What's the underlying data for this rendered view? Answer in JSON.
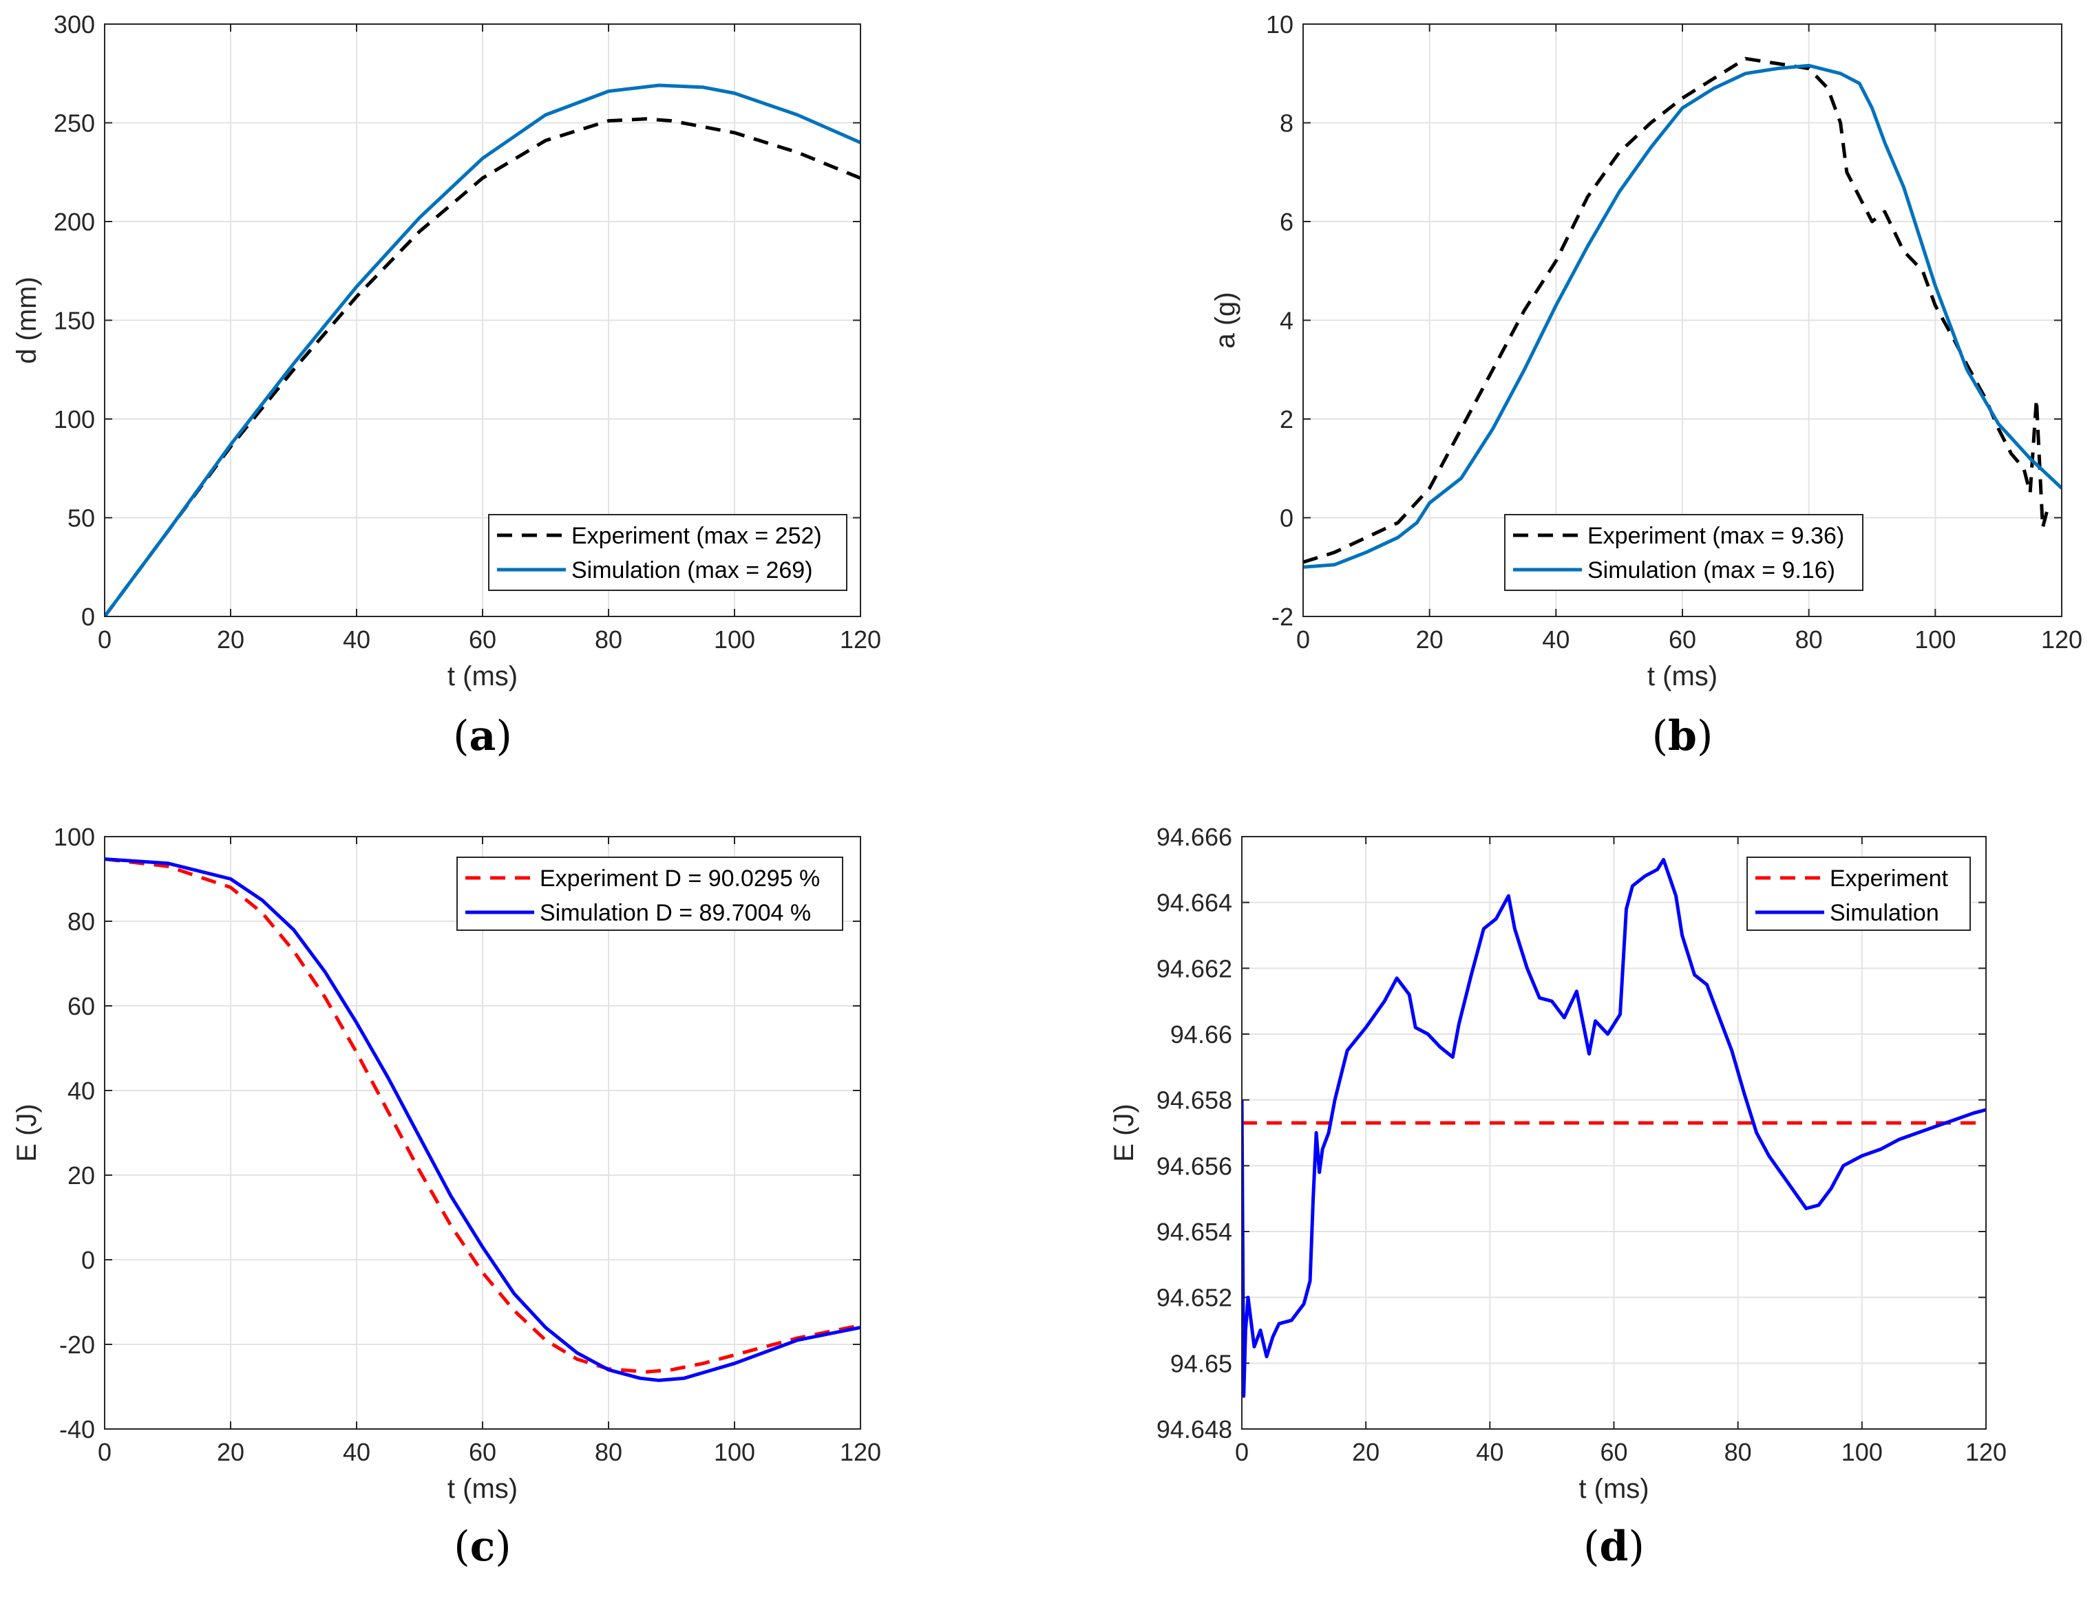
{
  "chart_data": [
    {
      "id": "a",
      "type": "line",
      "caption": "a",
      "xlabel": "t (ms)",
      "ylabel": "d (mm)",
      "xlim": [
        0,
        120
      ],
      "ylim": [
        0,
        300
      ],
      "xticks": [
        0,
        20,
        40,
        60,
        80,
        100,
        120
      ],
      "yticks": [
        0,
        50,
        100,
        150,
        200,
        250,
        300
      ],
      "grid": true,
      "legend_position": "bottom-right",
      "series": [
        {
          "name": "Experiment (max = 252)",
          "style": "dashed",
          "color": "#000000",
          "x": [
            0,
            10,
            20,
            30,
            40,
            50,
            60,
            70,
            80,
            86,
            90,
            100,
            110,
            120
          ],
          "y": [
            0,
            43,
            86,
            125,
            162,
            195,
            222,
            241,
            251,
            252,
            251,
            245,
            235,
            222
          ]
        },
        {
          "name": "Simulation (max = 269)",
          "style": "solid",
          "color": "#0072BD",
          "x": [
            0,
            10,
            20,
            30,
            40,
            50,
            60,
            70,
            80,
            88,
            95,
            100,
            110,
            120
          ],
          "y": [
            0,
            43,
            87,
            128,
            167,
            202,
            232,
            254,
            266,
            269,
            268,
            265,
            254,
            240
          ]
        }
      ]
    },
    {
      "id": "b",
      "type": "line",
      "caption": "b",
      "xlabel": "t (ms)",
      "ylabel": "a (g)",
      "xlim": [
        0,
        120
      ],
      "ylim": [
        -2,
        10
      ],
      "xticks": [
        0,
        20,
        40,
        60,
        80,
        100,
        120
      ],
      "yticks": [
        -2,
        0,
        2,
        4,
        6,
        8,
        10
      ],
      "grid": true,
      "legend_position": "bottom-center",
      "series": [
        {
          "name": "Experiment (max = 9.36)",
          "style": "dashed",
          "color": "#000000",
          "x": [
            0,
            5,
            10,
            15,
            20,
            25,
            30,
            35,
            40,
            45,
            50,
            55,
            60,
            65,
            70,
            75,
            80,
            83,
            85,
            86,
            88,
            90,
            92,
            95,
            98,
            100,
            103,
            105,
            108,
            110,
            112,
            114,
            115,
            116,
            117,
            118
          ],
          "y": [
            -0.9,
            -0.7,
            -0.4,
            -0.1,
            0.6,
            1.8,
            3.0,
            4.2,
            5.2,
            6.5,
            7.4,
            8.0,
            8.5,
            8.9,
            9.3,
            9.2,
            9.1,
            8.7,
            8.0,
            7.0,
            6.5,
            6.0,
            6.2,
            5.4,
            5.0,
            4.3,
            3.6,
            3.1,
            2.4,
            1.8,
            1.3,
            1.0,
            0.5,
            2.4,
            -0.2,
            0.3
          ]
        },
        {
          "name": "Simulation (max = 9.16)",
          "style": "solid",
          "color": "#0072BD",
          "x": [
            0,
            5,
            10,
            15,
            18,
            20,
            25,
            30,
            35,
            40,
            45,
            50,
            55,
            60,
            65,
            70,
            75,
            80,
            85,
            88,
            90,
            92,
            95,
            100,
            105,
            110,
            115,
            120
          ],
          "y": [
            -1.0,
            -0.95,
            -0.7,
            -0.4,
            -0.1,
            0.3,
            0.8,
            1.8,
            3.0,
            4.3,
            5.5,
            6.6,
            7.5,
            8.3,
            8.7,
            9.0,
            9.1,
            9.16,
            9.0,
            8.8,
            8.3,
            7.6,
            6.7,
            4.7,
            3.0,
            1.9,
            1.2,
            0.6
          ]
        }
      ]
    },
    {
      "id": "c",
      "type": "line",
      "caption": "c",
      "xlabel": "t (ms)",
      "ylabel": "E (J)",
      "xlim": [
        0,
        120
      ],
      "ylim": [
        -40,
        100
      ],
      "xticks": [
        0,
        20,
        40,
        60,
        80,
        100,
        120
      ],
      "yticks": [
        -40,
        -20,
        0,
        20,
        40,
        60,
        80,
        100
      ],
      "grid": true,
      "legend_position": "top-right",
      "series": [
        {
          "name": "Experiment D = 90.0295 %",
          "style": "dashed",
          "color": "#FF0000",
          "x": [
            0,
            10,
            20,
            25,
            30,
            35,
            40,
            45,
            50,
            55,
            60,
            65,
            70,
            75,
            80,
            86,
            90,
            95,
            100,
            110,
            120
          ],
          "y": [
            94.7,
            93,
            88,
            82,
            73,
            62,
            49,
            35,
            21,
            8,
            -3,
            -12,
            -19,
            -23.5,
            -25.8,
            -26.5,
            -26,
            -24.5,
            -22.5,
            -18.5,
            -15.5
          ]
        },
        {
          "name": "Simulation D = 89.7004 %",
          "style": "solid",
          "color": "#0000FF",
          "x": [
            0,
            10,
            20,
            25,
            30,
            35,
            40,
            45,
            50,
            55,
            60,
            65,
            70,
            75,
            80,
            85,
            88,
            92,
            100,
            110,
            120
          ],
          "y": [
            94.7,
            93.7,
            90,
            85,
            78,
            68,
            56,
            43,
            29,
            15,
            3,
            -8,
            -16,
            -22,
            -26,
            -28,
            -28.5,
            -28,
            -24.5,
            -19,
            -16
          ]
        }
      ]
    },
    {
      "id": "d",
      "type": "line",
      "caption": "d",
      "xlabel": "t (ms)",
      "ylabel": "E (J)",
      "xlim": [
        0,
        120
      ],
      "ylim": [
        94.648,
        94.666
      ],
      "xticks": [
        0,
        20,
        40,
        60,
        80,
        100,
        120
      ],
      "xtick_labels": [
        "0",
        "20",
        "40",
        "60",
        "80",
        "100",
        "120"
      ],
      "yticks": [
        94.648,
        94.65,
        94.652,
        94.654,
        94.656,
        94.658,
        94.66,
        94.662,
        94.664,
        94.666
      ],
      "ytick_labels": [
        "94.648",
        "94.65",
        "94.652",
        "94.654",
        "94.656",
        "94.658",
        "94.66",
        "94.662",
        "94.664",
        "94.666"
      ],
      "grid": true,
      "legend_position": "top-right",
      "series": [
        {
          "name": "Experiment",
          "style": "dashed",
          "color": "#FF0000",
          "x": [
            0,
            120
          ],
          "y": [
            94.6573,
            94.6573
          ]
        },
        {
          "name": "Simulation",
          "style": "solid",
          "color": "#0000FF",
          "x": [
            0,
            0.3,
            0.6,
            1,
            2,
            3,
            4,
            5,
            6,
            8,
            10,
            11,
            11.5,
            12,
            12.5,
            13,
            14,
            15,
            17,
            20,
            23,
            25,
            27,
            28,
            30,
            32,
            34,
            35,
            37,
            39,
            41,
            43,
            44,
            46,
            48,
            50,
            52,
            54,
            56,
            57,
            59,
            61,
            62,
            63,
            65,
            67,
            68,
            70,
            71,
            73,
            75,
            77,
            79,
            81,
            83,
            85,
            88,
            91,
            93,
            95,
            97,
            100,
            103,
            106,
            109,
            112,
            115,
            118,
            120
          ],
          "y": [
            94.658,
            94.649,
            94.651,
            94.652,
            94.6505,
            94.651,
            94.6502,
            94.6508,
            94.6512,
            94.6513,
            94.6518,
            94.6525,
            94.655,
            94.657,
            94.6558,
            94.6565,
            94.657,
            94.658,
            94.6595,
            94.6602,
            94.661,
            94.6617,
            94.6612,
            94.6602,
            94.66,
            94.6596,
            94.6593,
            94.6603,
            94.6618,
            94.6632,
            94.6635,
            94.6642,
            94.6632,
            94.662,
            94.6611,
            94.661,
            94.6605,
            94.6613,
            94.6594,
            94.6604,
            94.66,
            94.6606,
            94.6638,
            94.6645,
            94.6648,
            94.665,
            94.6653,
            94.6642,
            94.663,
            94.6618,
            94.6615,
            94.6605,
            94.6595,
            94.6582,
            94.657,
            94.6563,
            94.6555,
            94.6547,
            94.6548,
            94.6553,
            94.656,
            94.6563,
            94.6565,
            94.6568,
            94.657,
            94.6572,
            94.6574,
            94.6576,
            94.6577
          ]
        }
      ]
    }
  ]
}
